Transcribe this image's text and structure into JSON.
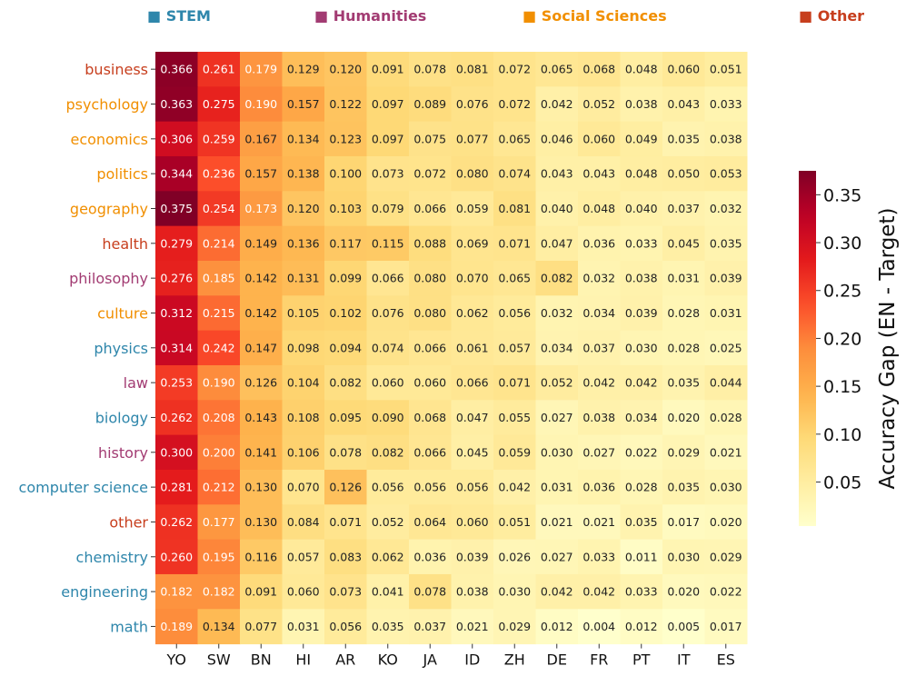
{
  "legend": [
    {
      "label": "■ STEM",
      "color": "#2e86ab"
    },
    {
      "label": "■ Humanities",
      "color": "#a23b72"
    },
    {
      "label": "■ Social Sciences",
      "color": "#f18f01"
    },
    {
      "label": "■ Other",
      "color": "#c73e1d"
    }
  ],
  "category_colors": {
    "STEM": "#2e86ab",
    "Humanities": "#a23b72",
    "Social Sciences": "#f18f01",
    "Other": "#c73e1d"
  },
  "chart_data": {
    "type": "heatmap",
    "title": "",
    "x_labels": [
      "YO",
      "SW",
      "BN",
      "HI",
      "AR",
      "KO",
      "JA",
      "ID",
      "ZH",
      "DE",
      "FR",
      "PT",
      "IT",
      "ES"
    ],
    "rows": [
      {
        "label": "business",
        "category": "Other",
        "values": [
          0.366,
          0.261,
          0.179,
          0.129,
          0.12,
          0.091,
          0.078,
          0.081,
          0.072,
          0.065,
          0.068,
          0.048,
          0.06,
          0.051
        ]
      },
      {
        "label": "psychology",
        "category": "Social Sciences",
        "values": [
          0.363,
          0.275,
          0.19,
          0.157,
          0.122,
          0.097,
          0.089,
          0.076,
          0.072,
          0.042,
          0.052,
          0.038,
          0.043,
          0.033
        ]
      },
      {
        "label": "economics",
        "category": "Social Sciences",
        "values": [
          0.306,
          0.259,
          0.167,
          0.134,
          0.123,
          0.097,
          0.075,
          0.077,
          0.065,
          0.046,
          0.06,
          0.049,
          0.035,
          0.038
        ]
      },
      {
        "label": "politics",
        "category": "Social Sciences",
        "values": [
          0.344,
          0.236,
          0.157,
          0.138,
          0.1,
          0.073,
          0.072,
          0.08,
          0.074,
          0.043,
          0.043,
          0.048,
          0.05,
          0.053
        ]
      },
      {
        "label": "geography",
        "category": "Social Sciences",
        "values": [
          0.375,
          0.254,
          0.173,
          0.12,
          0.103,
          0.079,
          0.066,
          0.059,
          0.081,
          0.04,
          0.048,
          0.04,
          0.037,
          0.032
        ]
      },
      {
        "label": "health",
        "category": "Other",
        "values": [
          0.279,
          0.214,
          0.149,
          0.136,
          0.117,
          0.115,
          0.088,
          0.069,
          0.071,
          0.047,
          0.036,
          0.033,
          0.045,
          0.035
        ]
      },
      {
        "label": "philosophy",
        "category": "Humanities",
        "values": [
          0.276,
          0.185,
          0.142,
          0.131,
          0.099,
          0.066,
          0.08,
          0.07,
          0.065,
          0.082,
          0.032,
          0.038,
          0.031,
          0.039
        ]
      },
      {
        "label": "culture",
        "category": "Social Sciences",
        "values": [
          0.312,
          0.215,
          0.142,
          0.105,
          0.102,
          0.076,
          0.08,
          0.062,
          0.056,
          0.032,
          0.034,
          0.039,
          0.028,
          0.031
        ]
      },
      {
        "label": "physics",
        "category": "STEM",
        "values": [
          0.314,
          0.242,
          0.147,
          0.098,
          0.094,
          0.074,
          0.066,
          0.061,
          0.057,
          0.034,
          0.037,
          0.03,
          0.028,
          0.025
        ]
      },
      {
        "label": "law",
        "category": "Humanities",
        "values": [
          0.253,
          0.19,
          0.126,
          0.104,
          0.082,
          0.06,
          0.06,
          0.066,
          0.071,
          0.052,
          0.042,
          0.042,
          0.035,
          0.044
        ]
      },
      {
        "label": "biology",
        "category": "STEM",
        "values": [
          0.262,
          0.208,
          0.143,
          0.108,
          0.095,
          0.09,
          0.068,
          0.047,
          0.055,
          0.027,
          0.038,
          0.034,
          0.02,
          0.028
        ]
      },
      {
        "label": "history",
        "category": "Humanities",
        "values": [
          0.3,
          0.2,
          0.141,
          0.106,
          0.078,
          0.082,
          0.066,
          0.045,
          0.059,
          0.03,
          0.027,
          0.022,
          0.029,
          0.021
        ]
      },
      {
        "label": "computer science",
        "category": "STEM",
        "values": [
          0.281,
          0.212,
          0.13,
          0.07,
          0.126,
          0.056,
          0.056,
          0.056,
          0.042,
          0.031,
          0.036,
          0.028,
          0.035,
          0.03
        ]
      },
      {
        "label": "other",
        "category": "Other",
        "values": [
          0.262,
          0.177,
          0.13,
          0.084,
          0.071,
          0.052,
          0.064,
          0.06,
          0.051,
          0.021,
          0.021,
          0.035,
          0.017,
          0.02
        ]
      },
      {
        "label": "chemistry",
        "category": "STEM",
        "values": [
          0.26,
          0.195,
          0.116,
          0.057,
          0.083,
          0.062,
          0.036,
          0.039,
          0.026,
          0.027,
          0.033,
          0.011,
          0.03,
          0.029
        ]
      },
      {
        "label": "engineering",
        "category": "STEM",
        "values": [
          0.182,
          0.182,
          0.091,
          0.06,
          0.073,
          0.041,
          0.078,
          0.038,
          0.03,
          0.042,
          0.042,
          0.033,
          0.02,
          0.022
        ]
      },
      {
        "label": "math",
        "category": "STEM",
        "values": [
          0.189,
          0.134,
          0.077,
          0.031,
          0.056,
          0.035,
          0.037,
          0.021,
          0.029,
          0.012,
          0.004,
          0.012,
          0.005,
          0.017
        ]
      }
    ],
    "colorbar": {
      "label": "Accuracy Gap (EN - Target)",
      "ticks": [
        "0.05",
        "0.10",
        "0.15",
        "0.20",
        "0.25",
        "0.30",
        "0.35"
      ],
      "range": [
        0.004,
        0.375
      ],
      "colormap": "YlOrRd"
    }
  }
}
